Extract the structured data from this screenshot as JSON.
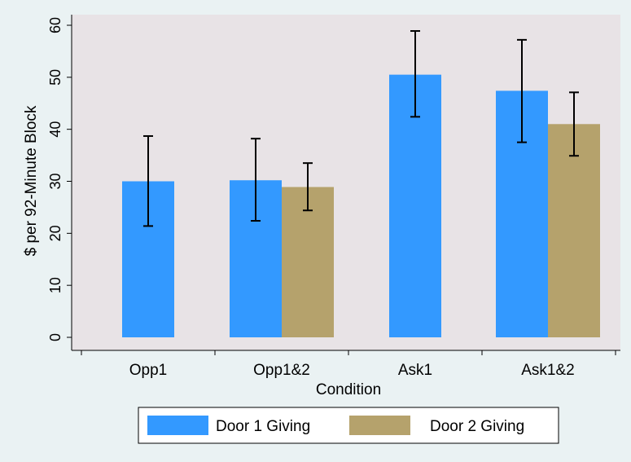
{
  "chart_data": {
    "type": "bar",
    "xlabel": "Condition",
    "ylabel": "$ per 92-Minute Block",
    "ylim": [
      0,
      60
    ],
    "yticks": [
      0,
      10,
      20,
      30,
      40,
      50,
      60
    ],
    "categories": [
      "Opp1",
      "Opp1&2",
      "Ask1",
      "Ask1&2"
    ],
    "series": [
      {
        "name": "Door 1 Giving",
        "color": "#3399ff",
        "values": [
          30.0,
          30.2,
          50.5,
          47.4
        ],
        "error_low": [
          21.4,
          22.4,
          42.4,
          37.5
        ],
        "error_high": [
          38.7,
          38.2,
          58.9,
          57.2
        ]
      },
      {
        "name": "Door 2 Giving",
        "color": "#b5a26c",
        "values": [
          null,
          28.9,
          null,
          41.0
        ],
        "error_low": [
          null,
          24.4,
          null,
          34.9
        ],
        "error_high": [
          null,
          33.5,
          null,
          47.1
        ]
      }
    ],
    "grid": false,
    "legend_position": "bottom"
  },
  "colors": {
    "outer_background": "#eaf2f3",
    "plot_background": "#e8e3e6",
    "axis": "#000000"
  }
}
